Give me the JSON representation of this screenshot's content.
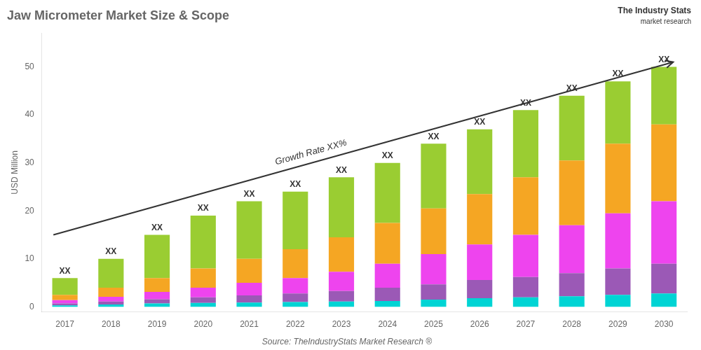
{
  "chart_data": {
    "type": "bar",
    "stacked": true,
    "title": "Jaw Micrometer Market Size & Scope",
    "ylabel": "USD Million",
    "categories": [
      "2017",
      "2018",
      "2019",
      "2020",
      "2021",
      "2022",
      "2023",
      "2024",
      "2025",
      "2026",
      "2027",
      "2028",
      "2029",
      "2030"
    ],
    "series": [
      {
        "color": "#00d4d4",
        "values": [
          0.3,
          0.5,
          0.7,
          0.8,
          0.9,
          1.0,
          1.1,
          1.2,
          1.5,
          1.8,
          2.0,
          2.2,
          2.5,
          2.8
        ]
      },
      {
        "color": "#9b59b6",
        "values": [
          0.4,
          0.6,
          0.9,
          1.2,
          1.5,
          1.8,
          2.2,
          2.8,
          3.2,
          3.8,
          4.2,
          4.8,
          5.5,
          6.2
        ]
      },
      {
        "color": "#ee44ee",
        "values": [
          0.7,
          1.0,
          1.5,
          2.0,
          2.6,
          3.2,
          4.0,
          5.0,
          6.3,
          7.4,
          8.8,
          10.0,
          11.5,
          13.0
        ]
      },
      {
        "color": "#f5a623",
        "values": [
          1.1,
          1.9,
          2.9,
          4.0,
          5.0,
          6.0,
          7.2,
          8.5,
          9.5,
          10.5,
          12.0,
          13.5,
          14.5,
          16.0
        ]
      },
      {
        "color": "#9acd32",
        "values": [
          3.5,
          6.0,
          9.0,
          11.0,
          12.0,
          12.0,
          12.5,
          12.5,
          13.5,
          13.5,
          14.0,
          13.5,
          13.0,
          12.0
        ]
      }
    ],
    "ylim": [
      -1,
      57
    ],
    "yticks": [
      0,
      10,
      20,
      30,
      40,
      50
    ],
    "grid": false,
    "annotations": [
      {
        "text": "XX",
        "x": "2017",
        "y": 6
      },
      {
        "text": "XX",
        "x": "2018",
        "y": 10
      },
      {
        "text": "XX",
        "x": "2019",
        "y": 15
      },
      {
        "text": "XX",
        "x": "2020",
        "y": 19
      },
      {
        "text": "XX",
        "x": "2021",
        "y": 22
      },
      {
        "text": "XX",
        "x": "2022",
        "y": 24
      },
      {
        "text": "XX",
        "x": "2023",
        "y": 27
      },
      {
        "text": "XX",
        "x": "2024",
        "y": 30
      },
      {
        "text": "XX",
        "x": "2025",
        "y": 34
      },
      {
        "text": "XX",
        "x": "2026",
        "y": 37
      },
      {
        "text": "XX",
        "x": "2027",
        "y": 41
      },
      {
        "text": "XX",
        "x": "2028",
        "y": 44
      },
      {
        "text": "XX",
        "x": "2029",
        "y": 47
      },
      {
        "text": "XX",
        "x": "2030",
        "y": 50
      }
    ],
    "arrow": {
      "x_from": "2017",
      "y_from": 15,
      "x_to": "2030",
      "y_to": 51,
      "label": "Growth Rate XX%"
    },
    "source": "Source: TheIndustryStats Market Research ®",
    "logo": [
      "The Industry Stats",
      "market research"
    ]
  }
}
